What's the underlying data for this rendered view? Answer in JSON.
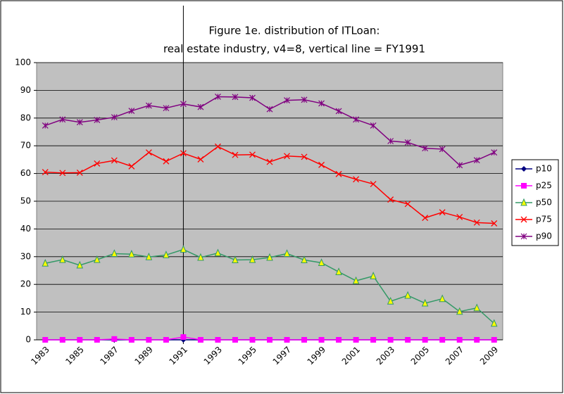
{
  "chart_data": {
    "type": "line",
    "title": "Figure 1e. distribution of ITLoan:",
    "subtitle": "real estate industry, v4=8, vertical line = FY1991",
    "x": [
      1983,
      1984,
      1985,
      1986,
      1987,
      1988,
      1989,
      1990,
      1991,
      1992,
      1993,
      1994,
      1995,
      1996,
      1997,
      1998,
      1999,
      2000,
      2001,
      2002,
      2003,
      2004,
      2005,
      2006,
      2007,
      2008,
      2009
    ],
    "xlim": [
      1982.5,
      2009.5
    ],
    "xticks": [
      1983,
      1985,
      1987,
      1989,
      1991,
      1993,
      1995,
      1997,
      1999,
      2001,
      2003,
      2005,
      2007,
      2009
    ],
    "ylim": [
      0,
      100
    ],
    "yticks": [
      0,
      10,
      20,
      30,
      40,
      50,
      60,
      70,
      80,
      90,
      100
    ],
    "grid": true,
    "vertical_line": 1991,
    "legend": "right",
    "series": [
      {
        "name": "p10",
        "color": "#000080",
        "marker": "diamond",
        "values": [
          0,
          0,
          0,
          0,
          0,
          0,
          0,
          0,
          0,
          0,
          0,
          0,
          0,
          0,
          0,
          0,
          0,
          0,
          0,
          0,
          0,
          0,
          0,
          0,
          0,
          0,
          0
        ]
      },
      {
        "name": "p25",
        "color": "#ff00ff",
        "marker": "square",
        "values": [
          0,
          0,
          0,
          0,
          0.3,
          0,
          0,
          0,
          1.0,
          0,
          0,
          0,
          0,
          0,
          0,
          0,
          0,
          0,
          0,
          0,
          0,
          0,
          0,
          0,
          0,
          0,
          0
        ]
      },
      {
        "name": "p50",
        "color": "#339966",
        "marker": "triangle",
        "values": [
          27.6,
          28.9,
          26.9,
          28.9,
          31.1,
          30.9,
          29.9,
          30.6,
          32.6,
          29.7,
          31.3,
          28.8,
          28.9,
          29.7,
          31.1,
          28.8,
          27.8,
          24.5,
          21.3,
          23.0,
          13.9,
          16.0,
          13.2,
          14.8,
          10.2,
          11.5,
          5.9
        ]
      },
      {
        "name": "p75",
        "color": "#ff0000",
        "marker": "x",
        "values": [
          60.5,
          60.2,
          60.3,
          63.6,
          64.7,
          62.6,
          67.6,
          64.4,
          67.3,
          65.1,
          69.7,
          66.7,
          66.8,
          64.2,
          66.3,
          66.0,
          63.1,
          59.8,
          57.9,
          56.2,
          50.6,
          49.0,
          44.0,
          46.0,
          44.3,
          42.3,
          42.0
        ]
      },
      {
        "name": "p90",
        "color": "#800080",
        "marker": "star",
        "values": [
          77.3,
          79.5,
          78.5,
          79.3,
          80.3,
          82.6,
          84.5,
          83.6,
          85.1,
          84.0,
          87.7,
          87.6,
          87.3,
          83.2,
          86.4,
          86.6,
          85.3,
          82.5,
          79.5,
          77.3,
          71.7,
          71.2,
          69.1,
          68.8,
          63.0,
          64.8,
          67.6
        ]
      }
    ]
  }
}
